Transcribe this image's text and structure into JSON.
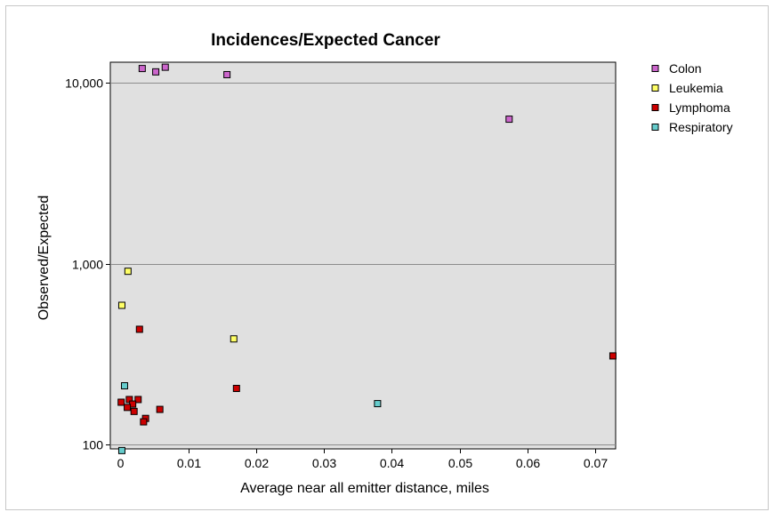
{
  "chart_data": {
    "type": "scatter",
    "title": "Incidences/Expected Cancer",
    "xlabel": "Average near all emitter distance, miles",
    "ylabel": "Observed/Expected",
    "xlim": [
      -0.0015,
      0.073
    ],
    "ylim": [
      95,
      13000
    ],
    "yscale": "log",
    "x_ticks": [
      0,
      0.01,
      0.02,
      0.03,
      0.04,
      0.05,
      0.06,
      0.07
    ],
    "x_tick_labels": [
      "0",
      "0.01",
      "0.02",
      "0.03",
      "0.04",
      "0.05",
      "0.06",
      "0.07"
    ],
    "y_ticks": [
      100,
      1000,
      10000
    ],
    "y_tick_labels": [
      "100",
      "1,000",
      "10,000"
    ],
    "grid": "horizontal",
    "legend_position": "top-right",
    "series": [
      {
        "name": "Colon",
        "color": "#cc66cc",
        "points": [
          {
            "x": 0.0032,
            "y": 12000
          },
          {
            "x": 0.0052,
            "y": 11500
          },
          {
            "x": 0.0066,
            "y": 12200
          },
          {
            "x": 0.0157,
            "y": 11100
          },
          {
            "x": 0.0573,
            "y": 6300
          }
        ]
      },
      {
        "name": "Leukemia",
        "color": "#ffff66",
        "points": [
          {
            "x": 0.0011,
            "y": 910
          },
          {
            "x": 0.0002,
            "y": 590
          },
          {
            "x": 0.0167,
            "y": 385
          }
        ]
      },
      {
        "name": "Lymphoma",
        "color": "#cc0000",
        "points": [
          {
            "x": 0.0028,
            "y": 435
          },
          {
            "x": 0.0726,
            "y": 310
          },
          {
            "x": 0.0171,
            "y": 205
          },
          {
            "x": 0.0001,
            "y": 172
          },
          {
            "x": 0.0013,
            "y": 178
          },
          {
            "x": 0.0026,
            "y": 178
          },
          {
            "x": 0.0018,
            "y": 168
          },
          {
            "x": 0.001,
            "y": 161
          },
          {
            "x": 0.002,
            "y": 153
          },
          {
            "x": 0.0058,
            "y": 157
          },
          {
            "x": 0.0037,
            "y": 140
          },
          {
            "x": 0.0034,
            "y": 134
          }
        ]
      },
      {
        "name": "Respiratory",
        "color": "#66cccc",
        "points": [
          {
            "x": 0.0006,
            "y": 212
          },
          {
            "x": 0.0379,
            "y": 169
          },
          {
            "x": 0.0002,
            "y": 93
          }
        ]
      }
    ]
  }
}
